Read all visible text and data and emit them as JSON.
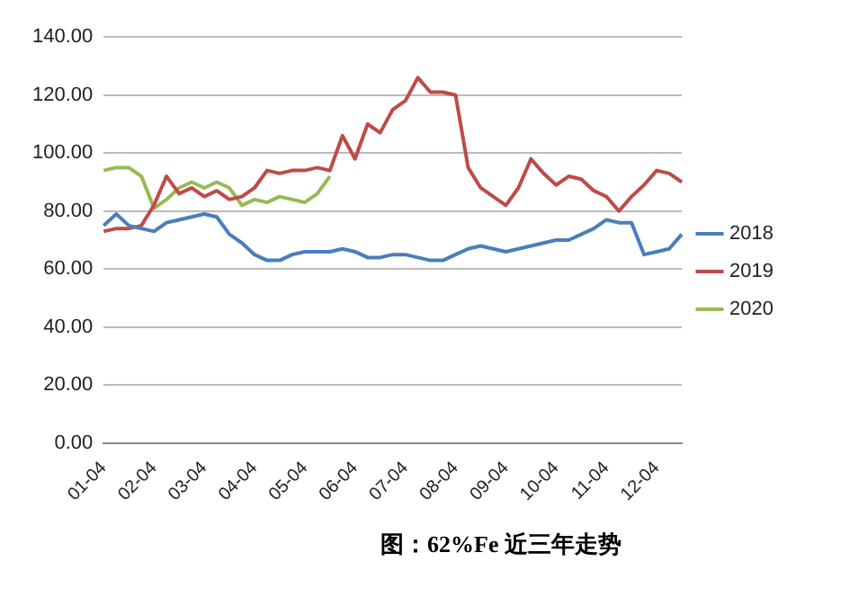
{
  "chart_data": {
    "type": "line",
    "title": "图：62%Fe 近三年走势",
    "categories": [
      "01-04",
      null,
      null,
      null,
      "02-04",
      null,
      null,
      null,
      "03-04",
      null,
      null,
      null,
      "04-04",
      null,
      null,
      null,
      "05-04",
      null,
      null,
      null,
      "06-04",
      null,
      null,
      null,
      "07-04",
      null,
      null,
      null,
      "08-04",
      null,
      null,
      null,
      "09-04",
      null,
      null,
      null,
      "10-04",
      null,
      null,
      null,
      "11-04",
      null,
      null,
      null,
      "12-04",
      null,
      null
    ],
    "series": [
      {
        "name": "2018",
        "color": "#4a7ebb",
        "values": [
          75,
          79,
          75,
          74,
          73,
          76,
          77,
          78,
          79,
          78,
          72,
          69,
          65,
          63,
          63,
          65,
          66,
          66,
          66,
          67,
          66,
          64,
          64,
          65,
          65,
          64,
          63,
          63,
          65,
          67,
          68,
          67,
          66,
          67,
          68,
          69,
          70,
          70,
          72,
          74,
          77,
          76,
          76,
          65,
          66,
          67,
          72
        ]
      },
      {
        "name": "2019",
        "color": "#be4b48",
        "values": [
          73,
          74,
          74,
          75,
          82,
          92,
          86,
          88,
          85,
          87,
          84,
          85,
          88,
          94,
          93,
          94,
          94,
          95,
          94,
          106,
          98,
          110,
          107,
          115,
          118,
          126,
          121,
          121,
          120,
          95,
          88,
          85,
          82,
          88,
          98,
          93,
          89,
          92,
          91,
          87,
          85,
          80,
          85,
          89,
          94,
          93,
          90
        ]
      },
      {
        "name": "2020",
        "color": "#98b954",
        "values": [
          94,
          95,
          95,
          92,
          81,
          84,
          88,
          90,
          88,
          90,
          88,
          82,
          84,
          83,
          85,
          84,
          83,
          86,
          92,
          null,
          null,
          null,
          null,
          null,
          null,
          null,
          null,
          null,
          null,
          null,
          null,
          null,
          null,
          null,
          null,
          null,
          null,
          null,
          null,
          null,
          null,
          null,
          null,
          null,
          null,
          null,
          null
        ]
      }
    ],
    "ylim": [
      0,
      140
    ],
    "yticks": [
      {
        "value": 0,
        "label": "0.00"
      },
      {
        "value": 20,
        "label": "20.00"
      },
      {
        "value": 40,
        "label": "40.00"
      },
      {
        "value": 60,
        "label": "60.00"
      },
      {
        "value": 80,
        "label": "80.00"
      },
      {
        "value": 100,
        "label": "100.00"
      },
      {
        "value": 120,
        "label": "120.00"
      },
      {
        "value": 140,
        "label": "140.00"
      }
    ],
    "grid": "y",
    "legend": "right",
    "marker": "none",
    "line_style": "solid"
  }
}
